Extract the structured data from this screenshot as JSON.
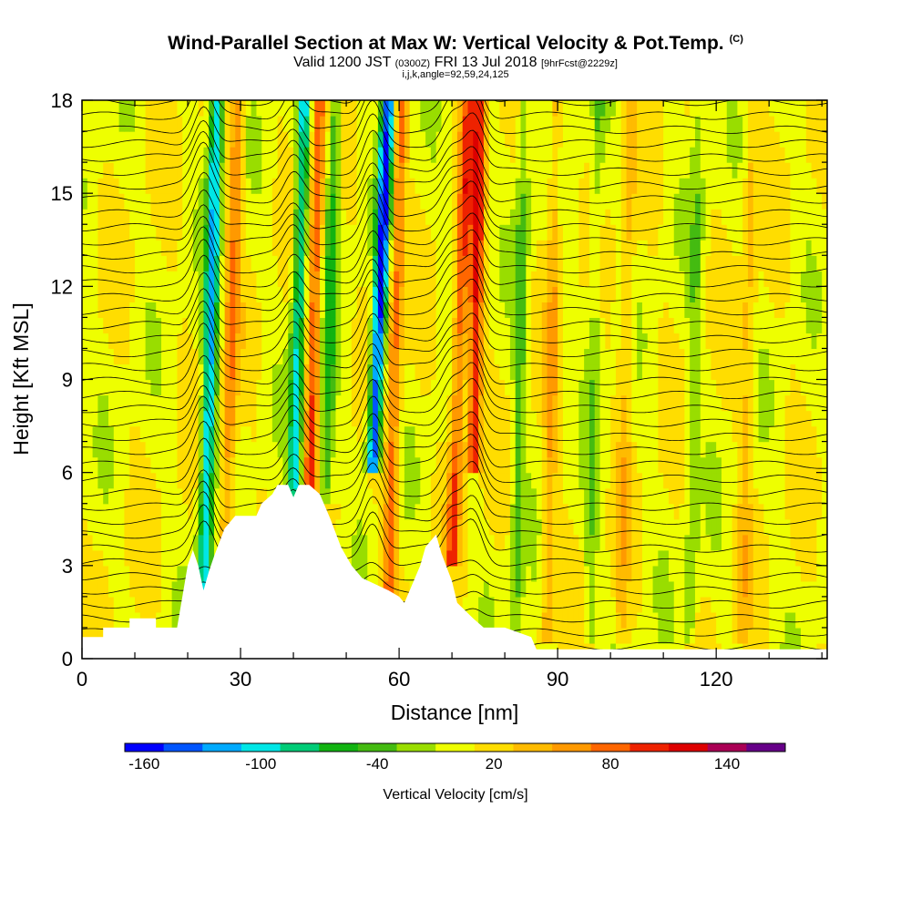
{
  "header": {
    "title": "Wind-Parallel Section at Max W: Vertical Velocity & Pot.Temp.",
    "copyright": "(C)",
    "valid_prefix": "Valid 1200 JST",
    "valid_utc": "(0300Z)",
    "valid_date": "FRI 13 Jul 2018",
    "forecast_tag": "[9hrFcst@2229z]",
    "indices": "i,j,k,angle=92,59,24,125"
  },
  "chart_data": {
    "type": "heatmap",
    "xlabel": "Distance [nm]",
    "ylabel": "Height [Kft MSL]",
    "xlim": [
      0,
      141
    ],
    "ylim": [
      0,
      18
    ],
    "x_ticks": [
      0,
      30,
      60,
      90,
      120
    ],
    "y_ticks": [
      0,
      3,
      6,
      9,
      12,
      15,
      18
    ],
    "colorbar": {
      "label": "Vertical Velocity [cm/s]",
      "tick_labels": [
        "-160",
        "-100",
        "-40",
        "20",
        "80",
        "140"
      ],
      "tick_values": [
        -160,
        -100,
        -40,
        20,
        80,
        140
      ],
      "range": [
        -170,
        170
      ],
      "colors": [
        "#0000ff",
        "#0055ff",
        "#00aaff",
        "#00e6e6",
        "#00cc77",
        "#11b311",
        "#44bb11",
        "#99dd00",
        "#eeff00",
        "#ffdd00",
        "#ffbb00",
        "#ff9900",
        "#ff6600",
        "#ee2200",
        "#dd0000",
        "#aa0055",
        "#660088"
      ]
    },
    "w_columns": [
      {
        "x": 23,
        "w": -120,
        "base": 1.5,
        "top": 18,
        "lean": 0.15
      },
      {
        "x": 27,
        "w": 60,
        "base": 2,
        "top": 18,
        "lean": 0.15
      },
      {
        "x": 40,
        "w": -100,
        "base": 4.5,
        "top": 18,
        "lean": 0.15
      },
      {
        "x": 43,
        "w": 80,
        "base": 5,
        "top": 18,
        "lean": 0.15
      },
      {
        "x": 46,
        "w": -60,
        "base": 5,
        "top": 18,
        "lean": 0.15
      },
      {
        "x": 55,
        "w": -160,
        "base": 6,
        "top": 18,
        "lean": 0.25
      },
      {
        "x": 58,
        "w": 70,
        "base": 2,
        "top": 18,
        "lean": 0.15
      },
      {
        "x": 70,
        "w": 80,
        "base": 3,
        "top": 18,
        "lean": 0.2
      },
      {
        "x": 74,
        "w": 100,
        "base": 6,
        "top": 18,
        "lean": 0.1
      },
      {
        "x": 82,
        "w": -40,
        "base": 0.5,
        "top": 18,
        "lean": 0.1
      },
      {
        "x": 88,
        "w": 40,
        "base": 0.5,
        "top": 18,
        "lean": 0.1
      },
      {
        "x": 96,
        "w": -30,
        "base": 0.5,
        "top": 18,
        "lean": 0.1
      },
      {
        "x": 102,
        "w": 30,
        "base": 0.5,
        "top": 18,
        "lean": 0.1
      },
      {
        "x": 115,
        "w": -30,
        "base": 0.5,
        "top": 18,
        "lean": 0.1
      },
      {
        "x": 125,
        "w": 30,
        "base": 0.5,
        "top": 18,
        "lean": 0.1
      }
    ],
    "terrain": [
      [
        0,
        0.7
      ],
      [
        4,
        0.7
      ],
      [
        4,
        1
      ],
      [
        9,
        1
      ],
      [
        9,
        1.3
      ],
      [
        14,
        1.3
      ],
      [
        14,
        1
      ],
      [
        18,
        1
      ],
      [
        19,
        2
      ],
      [
        20,
        3
      ],
      [
        21,
        3.5
      ],
      [
        22,
        3
      ],
      [
        23,
        2.2
      ],
      [
        24,
        2.8
      ],
      [
        25,
        3.3
      ],
      [
        27,
        4.2
      ],
      [
        29,
        4.6
      ],
      [
        33,
        4.6
      ],
      [
        34,
        5
      ],
      [
        36,
        5.3
      ],
      [
        37,
        5.6
      ],
      [
        39,
        5.6
      ],
      [
        40,
        5.2
      ],
      [
        41,
        5.6
      ],
      [
        43,
        5.6
      ],
      [
        45,
        5.3
      ],
      [
        47,
        4.5
      ],
      [
        49,
        3.6
      ],
      [
        51,
        3
      ],
      [
        53,
        2.6
      ],
      [
        58,
        2.2
      ],
      [
        60,
        2
      ],
      [
        61,
        1.8
      ],
      [
        62,
        2.2
      ],
      [
        64,
        3
      ],
      [
        65,
        3.6
      ],
      [
        67,
        4
      ],
      [
        68,
        3.4
      ],
      [
        70,
        2.5
      ],
      [
        71,
        1.8
      ],
      [
        74,
        1.3
      ],
      [
        76,
        1
      ],
      [
        80,
        1
      ],
      [
        85,
        0.7
      ],
      [
        86,
        0.3
      ],
      [
        141,
        0.3
      ]
    ],
    "theta_lines": {
      "count": 40,
      "base_start": 0.4,
      "spacing": 0.45,
      "perturbation_centers": [
        23,
        40,
        55,
        70,
        74
      ]
    },
    "grid": false
  }
}
